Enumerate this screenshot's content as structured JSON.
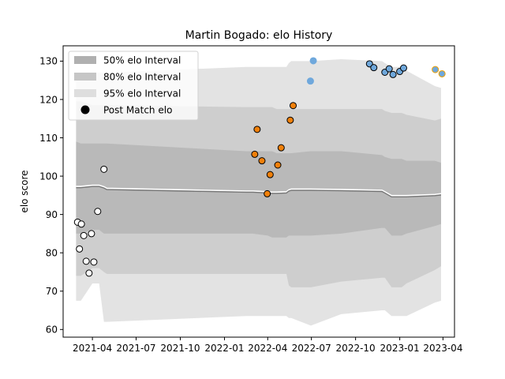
{
  "chart_data": {
    "type": "line",
    "title": "Martin Bogado: elo History",
    "xlabel": "",
    "ylabel": "elo score",
    "xlim": [
      "2021-01-30",
      "2023-04-25"
    ],
    "ylim": [
      58,
      134
    ],
    "x_ticks": [
      "2021-04",
      "2021-07",
      "2021-10",
      "2022-01",
      "2022-04",
      "2022-07",
      "2022-10",
      "2023-01",
      "2023-04"
    ],
    "y_ticks": [
      60,
      70,
      80,
      90,
      100,
      110,
      120,
      130
    ],
    "grid": false,
    "legend_placement": "upper-left",
    "legend": [
      {
        "label": "50% elo Interval",
        "kind": "patch",
        "color": "#b0b0b0"
      },
      {
        "label": "80% elo Interval",
        "kind": "patch",
        "color": "#c6c6c6"
      },
      {
        "label": "95% elo Interval",
        "kind": "patch",
        "color": "#dedede"
      },
      {
        "label": "Post Match elo",
        "kind": "marker",
        "color": "#000000"
      }
    ],
    "bands": {
      "dates": [
        "2021-02-26",
        "2021-03-08",
        "2021-04-01",
        "2021-04-15",
        "2021-04-25",
        "2021-05-01",
        "2022-02-15",
        "2022-03-01",
        "2022-04-01",
        "2022-04-10",
        "2022-04-20",
        "2022-05-10",
        "2022-05-15",
        "2022-05-20",
        "2022-06-30",
        "2022-09-01",
        "2022-11-25",
        "2022-12-01",
        "2022-12-15",
        "2023-01-05",
        "2023-01-15",
        "2023-03-15",
        "2023-03-28"
      ],
      "median": [
        97,
        97,
        97.3,
        97.3,
        96.9,
        96.5,
        95.8,
        95.8,
        95.6,
        95.5,
        95.5,
        95.6,
        96.1,
        96.3,
        96.3,
        96.2,
        96.0,
        95.6,
        94.6,
        94.6,
        94.6,
        94.9,
        95.1
      ],
      "p50_low": [
        85,
        85,
        86,
        86,
        85,
        85,
        85,
        85,
        84.5,
        84,
        84,
        84,
        84.5,
        84.5,
        84.5,
        85,
        86.5,
        86.5,
        84.5,
        84.5,
        85,
        87,
        87.5
      ],
      "p50_high": [
        109,
        108.5,
        108.5,
        108.5,
        108.5,
        108.5,
        106.5,
        106.5,
        106.5,
        106.5,
        106,
        106,
        106,
        106,
        106.5,
        106.5,
        105.5,
        105,
        104.5,
        104.5,
        104,
        104,
        103.5
      ],
      "p80_low": [
        74,
        74,
        76,
        76,
        75,
        74.5,
        74.5,
        74.5,
        74.5,
        74.5,
        74.5,
        74.5,
        71.5,
        71,
        71,
        72.5,
        73.5,
        73.5,
        71,
        71,
        72,
        75.5,
        76.5
      ],
      "p80_high": [
        119.5,
        119.5,
        118.5,
        118.5,
        118.5,
        118.5,
        118,
        118,
        118,
        118,
        117.5,
        117.5,
        117.5,
        117.5,
        117.5,
        117.5,
        117.5,
        117,
        116.5,
        116.5,
        116,
        114.5,
        115
      ],
      "p95_low": [
        67.5,
        67.5,
        72,
        72,
        62,
        62,
        63.5,
        63.5,
        63.5,
        63.5,
        63.5,
        63.5,
        63,
        63,
        61,
        64,
        65,
        65,
        63.5,
        63.5,
        63.5,
        67,
        67.5
      ],
      "p95_high": [
        126,
        126.5,
        127,
        127,
        127,
        127,
        128.5,
        128.5,
        128.5,
        128.5,
        128.5,
        128.5,
        129.5,
        130,
        130,
        130.5,
        130,
        129.5,
        128.5,
        128.5,
        127.5,
        123.5,
        123
      ]
    },
    "series": [
      {
        "marker_face": "#ffffff",
        "marker_edge": "#000000",
        "points": [
          {
            "x": "2021-03-01",
            "y": 88
          },
          {
            "x": "2021-03-05",
            "y": 81
          },
          {
            "x": "2021-03-09",
            "y": 87.5
          },
          {
            "x": "2021-03-14",
            "y": 84.5
          },
          {
            "x": "2021-03-19",
            "y": 77.8
          },
          {
            "x": "2021-03-25",
            "y": 74.7
          },
          {
            "x": "2021-03-30",
            "y": 85
          },
          {
            "x": "2021-04-04",
            "y": 77.6
          },
          {
            "x": "2021-04-12",
            "y": 90.8
          },
          {
            "x": "2021-04-25",
            "y": 101.8
          }
        ]
      },
      {
        "marker_face": "#f0800a",
        "marker_edge": "#000000",
        "points": [
          {
            "x": "2022-03-05",
            "y": 105.7
          },
          {
            "x": "2022-03-10",
            "y": 112.2
          },
          {
            "x": "2022-03-20",
            "y": 104
          },
          {
            "x": "2022-03-31",
            "y": 95.4
          },
          {
            "x": "2022-04-06",
            "y": 100.4
          },
          {
            "x": "2022-04-22",
            "y": 102.9
          },
          {
            "x": "2022-04-29",
            "y": 107.4
          },
          {
            "x": "2022-05-18",
            "y": 114.6
          },
          {
            "x": "2022-05-24",
            "y": 118.4
          }
        ]
      },
      {
        "marker_face": "#6fa8dc",
        "marker_edge": "#6fa8dc",
        "points": [
          {
            "x": "2022-06-29",
            "y": 124.8
          },
          {
            "x": "2022-07-05",
            "y": 130.1
          }
        ]
      },
      {
        "marker_face": "#6fa8dc",
        "marker_edge": "#000000",
        "points": [
          {
            "x": "2022-10-30",
            "y": 129.3
          },
          {
            "x": "2022-11-08",
            "y": 128.3
          },
          {
            "x": "2022-12-01",
            "y": 127.1
          },
          {
            "x": "2022-12-10",
            "y": 128
          },
          {
            "x": "2022-12-18",
            "y": 126.5
          },
          {
            "x": "2023-01-01",
            "y": 127.3
          },
          {
            "x": "2023-01-09",
            "y": 128.2
          }
        ]
      },
      {
        "marker_face": "#6fa8dc",
        "marker_edge": "#f0a000",
        "points": [
          {
            "x": "2023-03-16",
            "y": 127.8
          },
          {
            "x": "2023-03-30",
            "y": 126.7
          }
        ]
      }
    ]
  }
}
